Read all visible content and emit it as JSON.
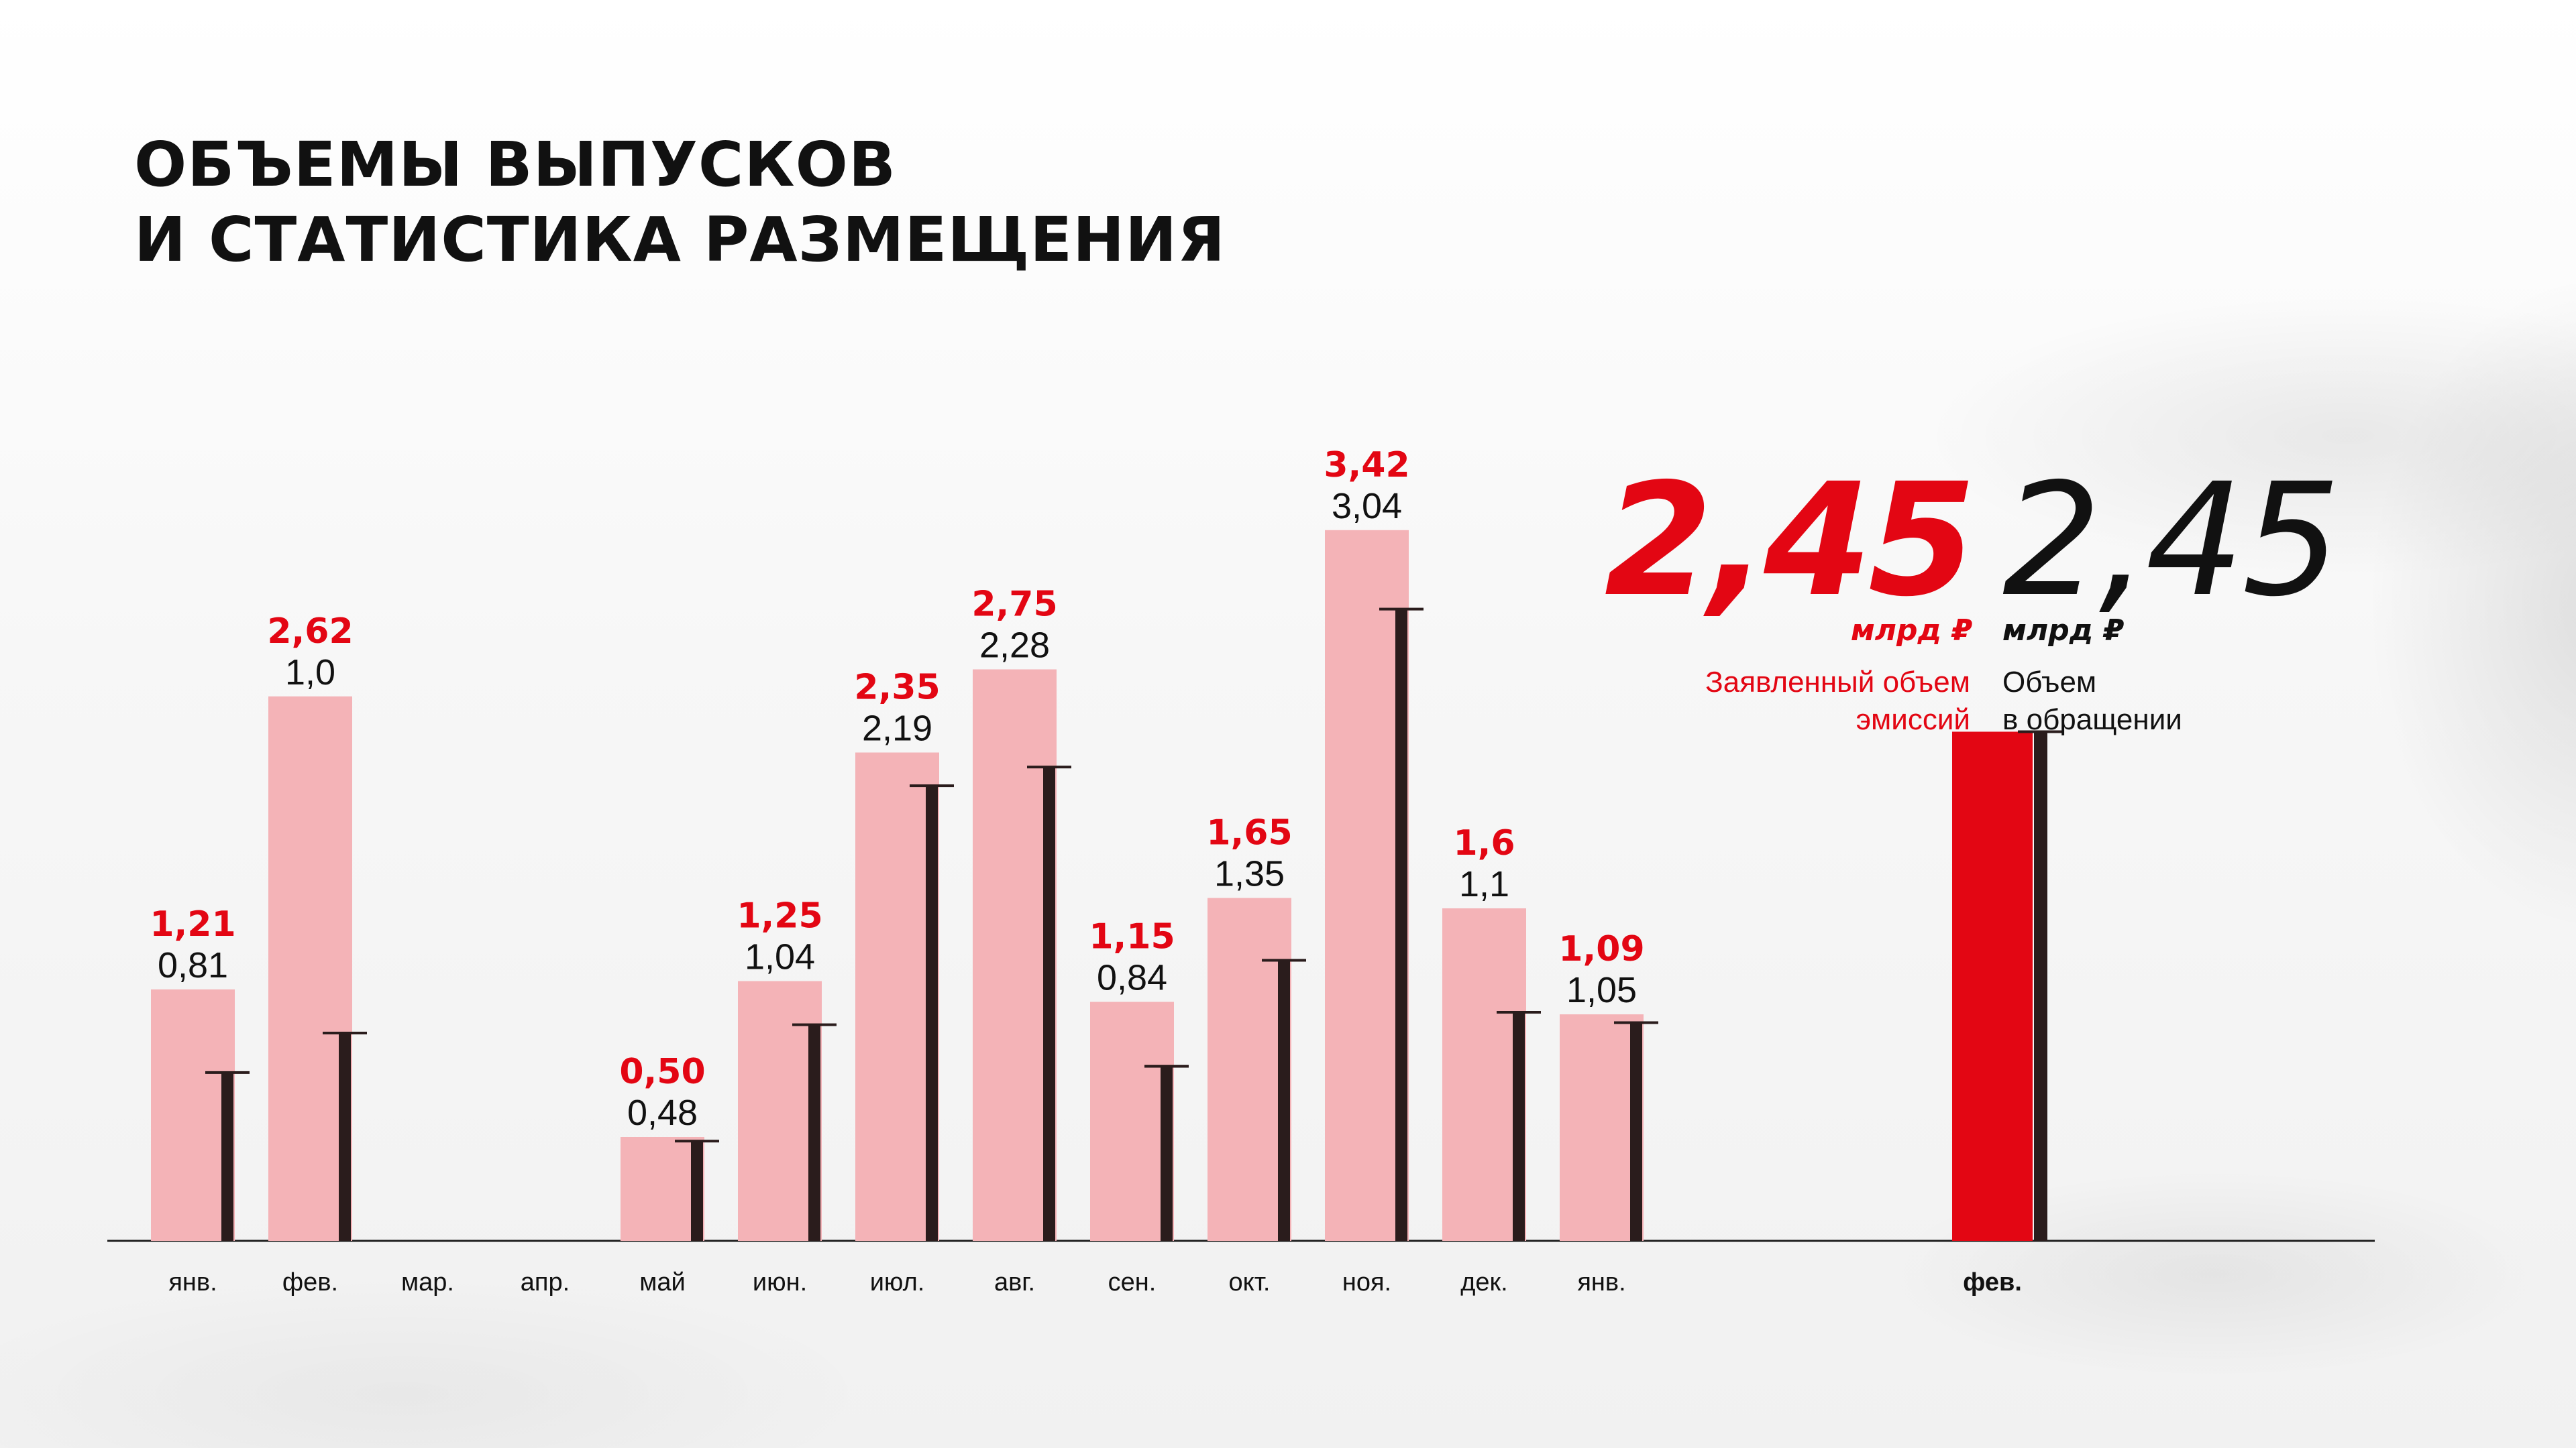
{
  "title": {
    "line1": "ОБЪЕМЫ ВЫПУСКОВ",
    "line2": "И СТАТИСТИКА РАЗМЕЩЕНИЯ"
  },
  "chart_data": {
    "type": "bar",
    "categories": [
      "янв.",
      "фев.",
      "мар.",
      "апр.",
      "май",
      "июн.",
      "июл.",
      "авг.",
      "сен.",
      "окт.",
      "ноя.",
      "дек.",
      "янв.",
      "фев."
    ],
    "series": [
      {
        "name": "Заявленный объем эмиссий",
        "values": [
          1.21,
          2.62,
          null,
          null,
          0.5,
          1.25,
          2.35,
          2.75,
          1.15,
          1.65,
          3.42,
          1.6,
          1.09,
          2.45
        ],
        "labels": [
          "1,21",
          "2,62",
          "",
          "",
          "0,50",
          "1,25",
          "2,35",
          "2,75",
          "1,15",
          "1,65",
          "3,42",
          "1,6",
          "1,09",
          ""
        ]
      },
      {
        "name": "Объем в обращении",
        "values": [
          0.81,
          1.0,
          null,
          null,
          0.48,
          1.04,
          2.19,
          2.28,
          0.84,
          1.35,
          3.04,
          1.1,
          1.05,
          2.45
        ],
        "labels": [
          "0,81",
          "1,0",
          "",
          "",
          "0,48",
          "1,04",
          "2,19",
          "2,28",
          "0,84",
          "1,35",
          "3,04",
          "1,1",
          "1,05",
          ""
        ]
      }
    ],
    "highlight_category": "фев.",
    "ylim": [
      0,
      3.42
    ]
  },
  "summary": {
    "declared_value": "2,45",
    "declared_unit": "млрд ₽",
    "declared_caption_line1": "Заявленный объем",
    "declared_caption_line2": "эмиссий",
    "circulation_value": "2,45",
    "circulation_unit": "млрд ₽",
    "circulation_caption_line1": "Объем",
    "circulation_caption_line2": "в обращении"
  },
  "colors": {
    "declared_bar": "#f4b3b7",
    "declared_label": "#e30613",
    "highlight_declared_bar": "#e30613",
    "circulation_bar": "#2a1c1c",
    "text": "#111111",
    "axis": "#222222"
  }
}
